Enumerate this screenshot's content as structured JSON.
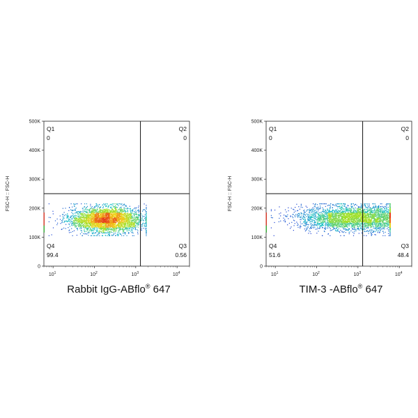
{
  "chart_data": [
    {
      "type": "scatter",
      "subtype": "flow-cytometry-density-dot-plot",
      "xlabel": "Rabbit IgG-ABflo® 647",
      "xlabel_main": "Rabbit IgG-ABflo",
      "xlabel_sup": "®",
      "xlabel_tail": " 647",
      "ylabel": "FSC-H :: FSC-H",
      "x_scale": "log",
      "xlim": [
        6,
        20000
      ],
      "ylim": [
        0,
        500000
      ],
      "x_ticks": [
        {
          "base": "10",
          "exp": "1"
        },
        {
          "base": "10",
          "exp": "2"
        },
        {
          "base": "10",
          "exp": "3"
        },
        {
          "base": "10",
          "exp": "4"
        }
      ],
      "y_ticks": [
        "0",
        "100K",
        "200K",
        "300K",
        "400K",
        "500K"
      ],
      "y_tick_values": [
        0,
        100000,
        200000,
        300000,
        400000,
        500000
      ],
      "gate_x": 1300,
      "gate_y": 250000,
      "quadrants": [
        {
          "name": "Q1",
          "value": "0",
          "position": "top-left"
        },
        {
          "name": "Q2",
          "value": "0",
          "position": "top-right"
        },
        {
          "name": "Q3",
          "value": "0.56",
          "position": "bottom-right"
        },
        {
          "name": "Q4",
          "value": "99.4",
          "position": "bottom-left"
        }
      ],
      "population": {
        "x_center": 200,
        "x_log_spread": 0.45,
        "x_min": 8,
        "x_max": 1800,
        "y_center": 160000,
        "y_spread": 22000,
        "n_points": 3400
      },
      "colors": {
        "low": "#1f2bd6",
        "mid": "#19c0c9",
        "high_mid": "#9fe02a",
        "high": "#f2d21a",
        "peak": "#e8401a"
      }
    },
    {
      "type": "scatter",
      "subtype": "flow-cytometry-density-dot-plot",
      "xlabel": "TIM-3 -ABflo® 647",
      "xlabel_main": "TIM-3 -ABflo",
      "xlabel_sup": "®",
      "xlabel_tail": " 647",
      "ylabel": "FSC-H :: FSC-H",
      "x_scale": "log",
      "xlim": [
        6,
        20000
      ],
      "ylim": [
        0,
        500000
      ],
      "x_ticks": [
        {
          "base": "10",
          "exp": "1"
        },
        {
          "base": "10",
          "exp": "2"
        },
        {
          "base": "10",
          "exp": "3"
        },
        {
          "base": "10",
          "exp": "4"
        }
      ],
      "y_ticks": [
        "0",
        "100K",
        "200K",
        "300K",
        "400K",
        "500K"
      ],
      "y_tick_values": [
        0,
        100000,
        200000,
        300000,
        400000,
        500000
      ],
      "gate_x": 1300,
      "gate_y": 250000,
      "quadrants": [
        {
          "name": "Q1",
          "value": "0",
          "position": "top-left"
        },
        {
          "name": "Q2",
          "value": "0",
          "position": "top-right"
        },
        {
          "name": "Q3",
          "value": "48.4",
          "position": "bottom-right"
        },
        {
          "name": "Q4",
          "value": "51.6",
          "position": "bottom-left"
        }
      ],
      "population": {
        "x_center": 900,
        "x_log_spread": 0.7,
        "x_min": 8,
        "x_max": 6000,
        "y_center": 165000,
        "y_spread": 22000,
        "n_points": 3600
      },
      "colors": {
        "low": "#1f2bd6",
        "mid": "#19c0c9",
        "high_mid": "#9fe02a",
        "high": "#f2d21a",
        "peak": "#e8401a"
      }
    }
  ]
}
